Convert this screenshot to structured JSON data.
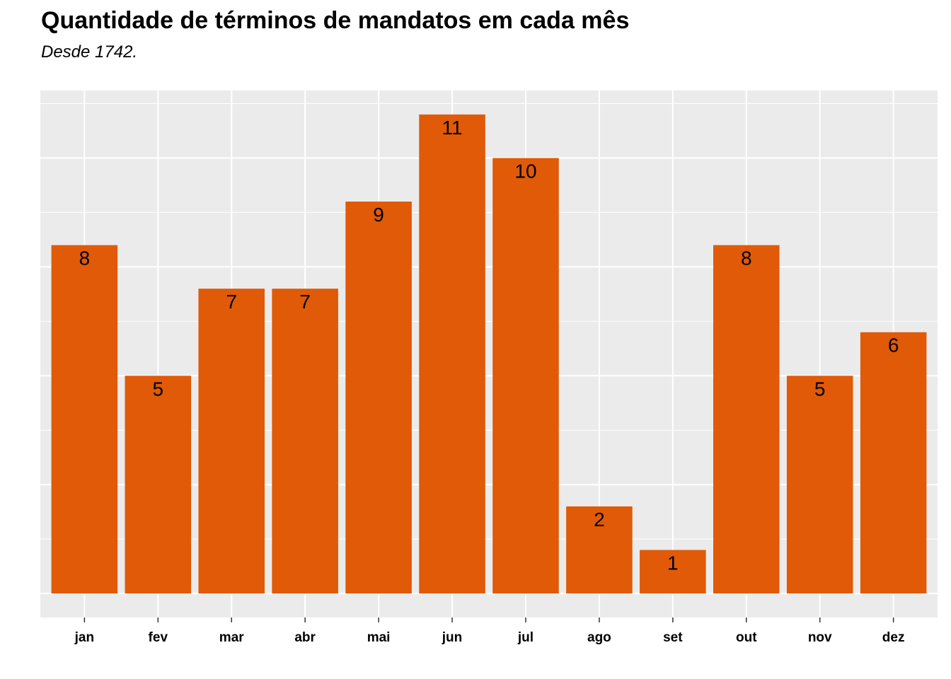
{
  "chart_data": {
    "type": "bar",
    "title": "Quantidade de términos de mandatos em cada mês",
    "subtitle": "Desde 1742.",
    "xlabel": "",
    "ylabel": "",
    "categories": [
      "jan",
      "fev",
      "mar",
      "abr",
      "mai",
      "jun",
      "jul",
      "ago",
      "set",
      "out",
      "nov",
      "dez"
    ],
    "values": [
      8,
      5,
      7,
      7,
      9,
      11,
      10,
      2,
      1,
      8,
      5,
      6
    ],
    "ylim": [
      -0.55,
      11.55
    ],
    "y_ticks_shown": false,
    "grid": true,
    "data_labels": true,
    "legend": "none",
    "bar_color": "#E05A08",
    "panel_background": "#EBEBEB",
    "grid_color": "#FFFFFF"
  }
}
